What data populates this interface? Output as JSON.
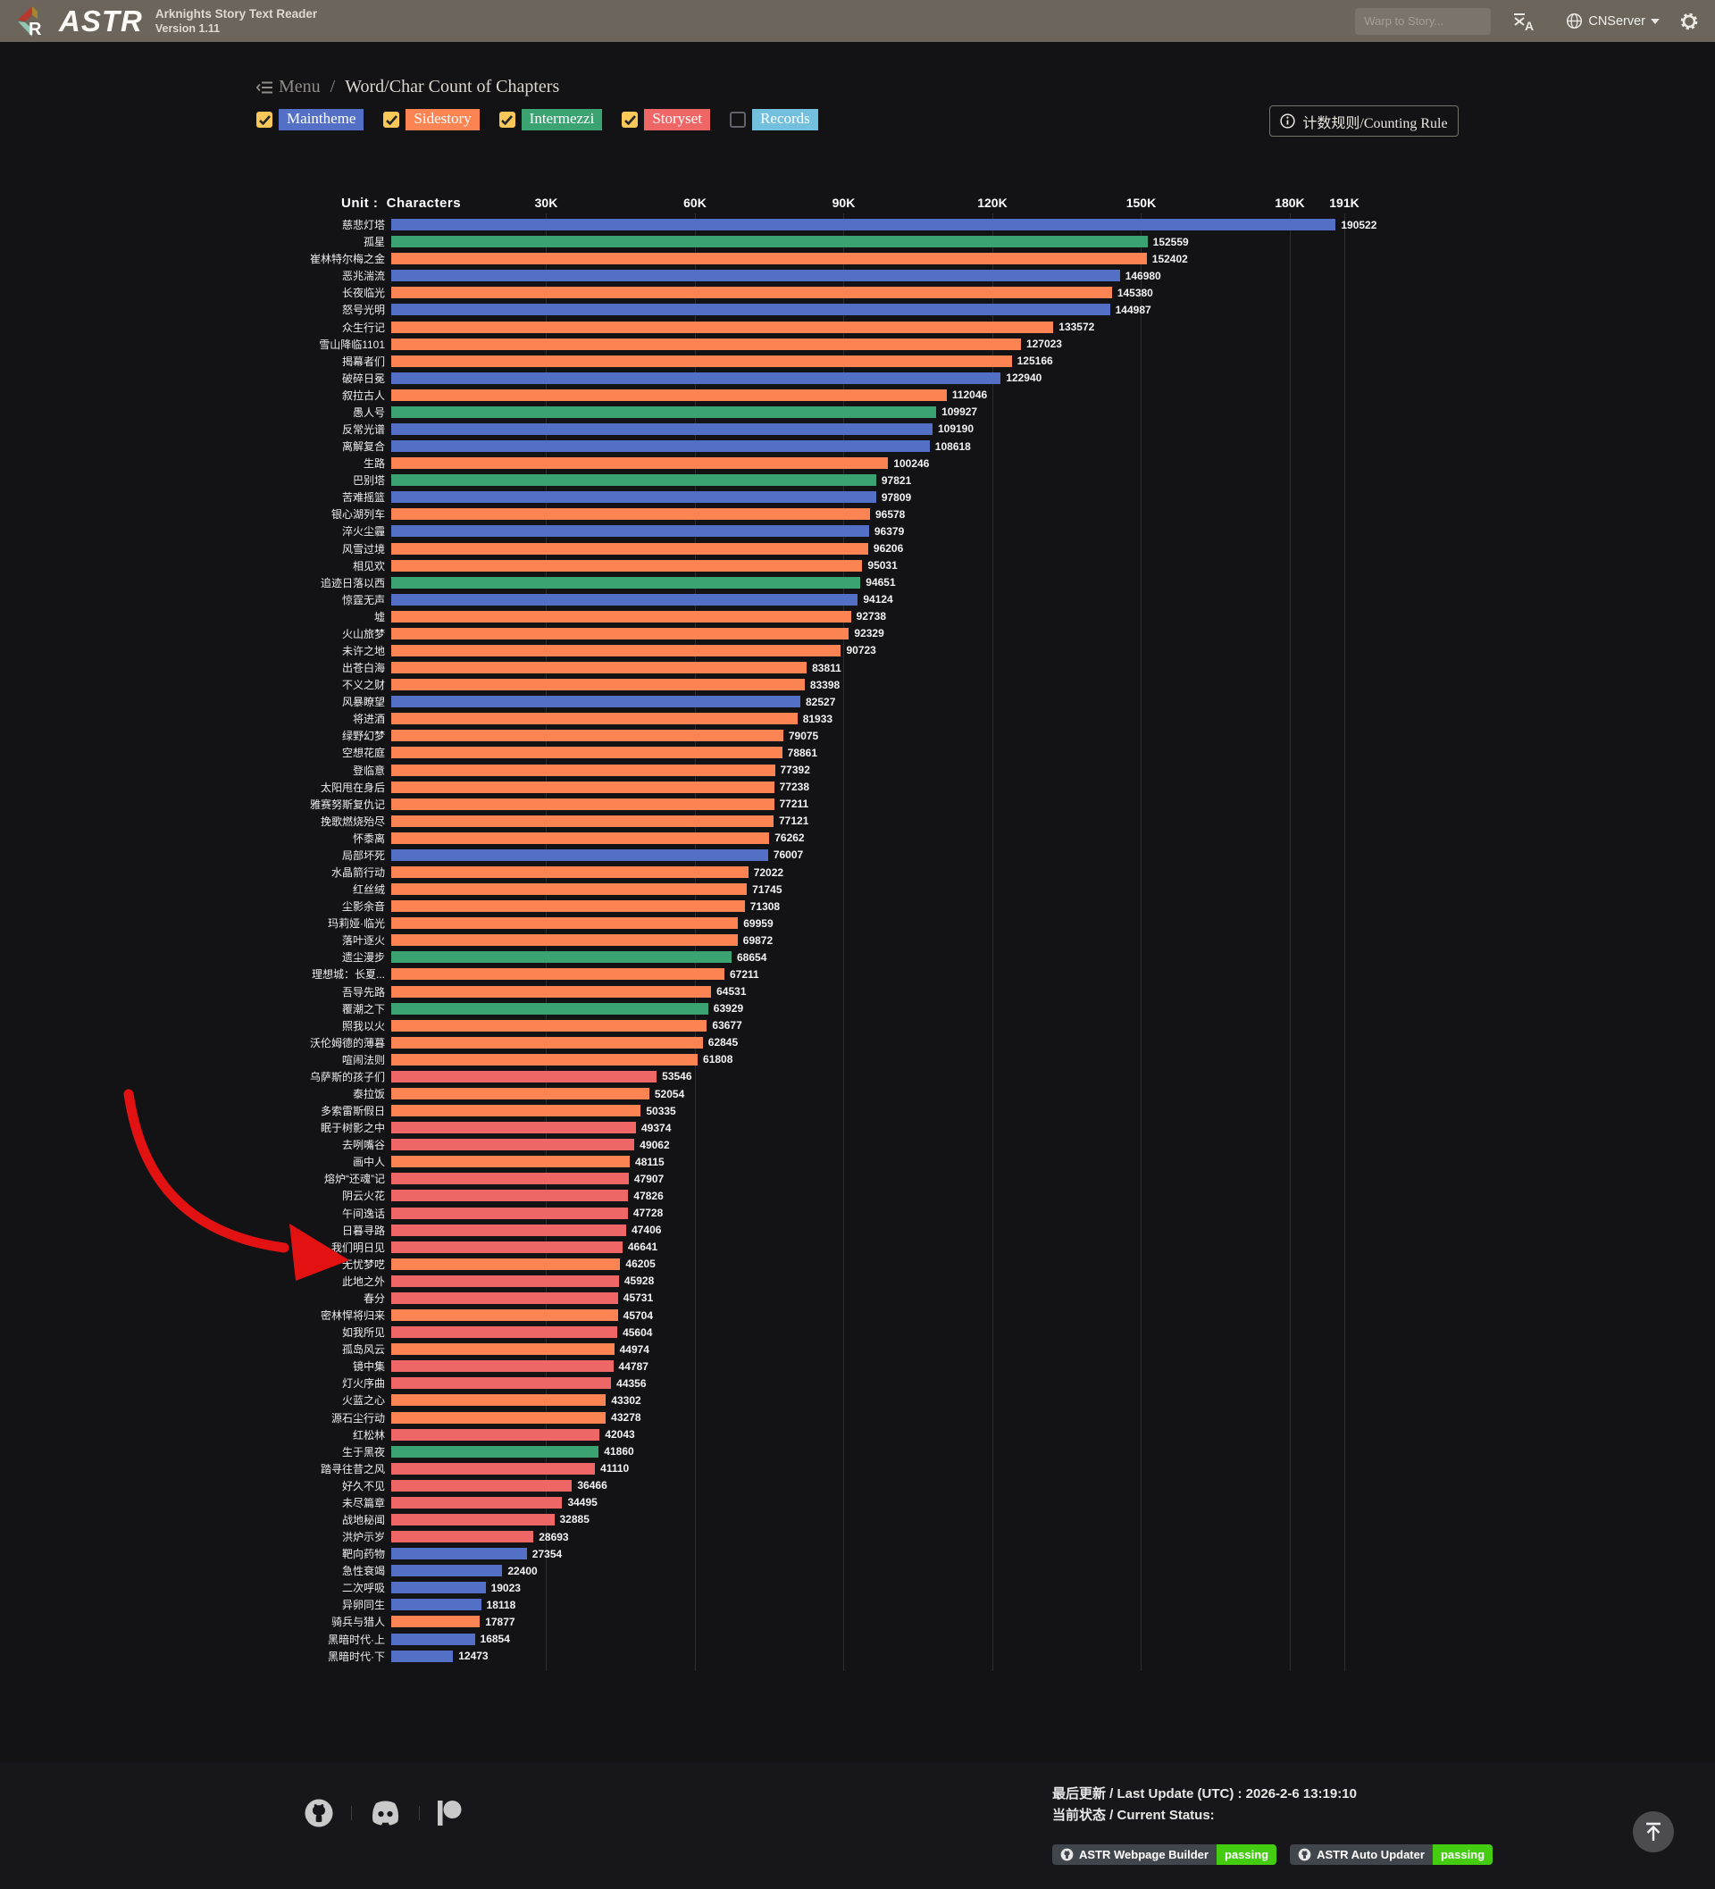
{
  "header": {
    "app_name": "ASTR",
    "app_title": "Arknights Story Text Reader",
    "version": "Version 1.11",
    "search_placeholder": "Warp to Story...",
    "server_label": "CNServer"
  },
  "breadcrumb": {
    "menu": "Menu",
    "separator": "/",
    "page": "Word/Char Count of Chapters"
  },
  "filters": [
    {
      "label": "Maintheme",
      "checked": true,
      "color": "#5470c6"
    },
    {
      "label": "Sidestory",
      "checked": true,
      "color": "#fc8452"
    },
    {
      "label": "Intermezzi",
      "checked": true,
      "color": "#3ba272"
    },
    {
      "label": "Storyset",
      "checked": true,
      "color": "#ee6666"
    },
    {
      "label": "Records",
      "checked": false,
      "color": "#73c0de"
    }
  ],
  "counting_rule_button": "计数规则/Counting Rule",
  "chart_data": {
    "type": "bar",
    "orientation": "horizontal",
    "unit_label": "Unit :  Characters",
    "xlim": [
      0,
      191000
    ],
    "x_ticks": [
      "30K",
      "60K",
      "90K",
      "120K",
      "150K",
      "180K",
      "191K"
    ],
    "x_tick_values": [
      30000,
      60000,
      90000,
      120000,
      150000,
      180000,
      191000
    ],
    "grid": true,
    "series_colors": {
      "Maintheme": "#5470c6",
      "Sidestory": "#fc8452",
      "Intermezzi": "#3ba272",
      "Storyset": "#ee6666",
      "Records": "#73c0de"
    },
    "categories": [
      "慈悲灯塔",
      "孤星",
      "崔林特尔梅之金",
      "恶兆湍流",
      "长夜临光",
      "怒号光明",
      "众生行记",
      "雪山降临1101",
      "揭幕者们",
      "破碎日冕",
      "叙拉古人",
      "愚人号",
      "反常光谱",
      "离解复合",
      "生路",
      "巴别塔",
      "苦难摇篮",
      "银心湖列车",
      "淬火尘霾",
      "风雪过境",
      "相见欢",
      "追迹日落以西",
      "惊霆无声",
      "墟",
      "火山旅梦",
      "未许之地",
      "出苍白海",
      "不义之财",
      "风暴瞭望",
      "将进酒",
      "绿野幻梦",
      "空想花庭",
      "登临意",
      "太阳甩在身后",
      "雅赛努斯复仇记",
      "挽歌燃烧殆尽",
      "怀黍离",
      "局部坏死",
      "水晶箭行动",
      "红丝绒",
      "尘影余音",
      "玛莉娅·临光",
      "落叶逐火",
      "遗尘漫步",
      "理想城：长夏...",
      "吾导先路",
      "覆潮之下",
      "照我以火",
      "沃伦姆德的薄暮",
      "喧闹法则",
      "乌萨斯的孩子们",
      "泰拉饭",
      "多索雷斯假日",
      "眠于树影之中",
      "去咧嘴谷",
      "画中人",
      "熔炉“还魂”记",
      "阴云火花",
      "午间逸话",
      "日暮寻路",
      "我们明日见",
      "无忧梦呓",
      "此地之外",
      "春分",
      "密林悍将归来",
      "如我所见",
      "孤岛风云",
      "镜中集",
      "灯火序曲",
      "火蓝之心",
      "源石尘行动",
      "红松林",
      "生于黑夜",
      "踏寻往昔之风",
      "好久不见",
      "未尽篇章",
      "战地秘闻",
      "洪炉示岁",
      "靶向药物",
      "急性衰竭",
      "二次呼吸",
      "异卵同生",
      "骑兵与猎人",
      "黑暗时代·上",
      "黑暗时代·下"
    ],
    "values": [
      190522,
      152559,
      152402,
      146980,
      145380,
      144987,
      133572,
      127023,
      125166,
      122940,
      112046,
      109927,
      109190,
      108618,
      100246,
      97821,
      97809,
      96578,
      96379,
      96206,
      95031,
      94651,
      94124,
      92738,
      92329,
      90723,
      83811,
      83398,
      82527,
      81933,
      79075,
      78861,
      77392,
      77238,
      77211,
      77121,
      76262,
      76007,
      72022,
      71745,
      71308,
      69959,
      69872,
      68654,
      67211,
      64531,
      63929,
      63677,
      62845,
      61808,
      53546,
      52054,
      50335,
      49374,
      49062,
      48115,
      47907,
      47826,
      47728,
      47406,
      46641,
      46205,
      45928,
      45731,
      45704,
      45604,
      44974,
      44787,
      44356,
      43302,
      43278,
      42043,
      41860,
      41110,
      36466,
      34495,
      32885,
      28693,
      27354,
      22400,
      19023,
      18118,
      17877,
      16854,
      12473
    ],
    "groups": [
      "Maintheme",
      "Intermezzi",
      "Sidestory",
      "Maintheme",
      "Sidestory",
      "Maintheme",
      "Sidestory",
      "Sidestory",
      "Sidestory",
      "Maintheme",
      "Sidestory",
      "Intermezzi",
      "Maintheme",
      "Maintheme",
      "Sidestory",
      "Intermezzi",
      "Maintheme",
      "Sidestory",
      "Maintheme",
      "Sidestory",
      "Sidestory",
      "Intermezzi",
      "Maintheme",
      "Sidestory",
      "Sidestory",
      "Sidestory",
      "Sidestory",
      "Sidestory",
      "Maintheme",
      "Sidestory",
      "Sidestory",
      "Sidestory",
      "Sidestory",
      "Sidestory",
      "Sidestory",
      "Sidestory",
      "Sidestory",
      "Maintheme",
      "Sidestory",
      "Sidestory",
      "Sidestory",
      "Sidestory",
      "Sidestory",
      "Intermezzi",
      "Sidestory",
      "Sidestory",
      "Intermezzi",
      "Sidestory",
      "Sidestory",
      "Sidestory",
      "Storyset",
      "Sidestory",
      "Sidestory",
      "Storyset",
      "Storyset",
      "Sidestory",
      "Storyset",
      "Storyset",
      "Storyset",
      "Storyset",
      "Storyset",
      "Sidestory",
      "Storyset",
      "Storyset",
      "Sidestory",
      "Storyset",
      "Sidestory",
      "Storyset",
      "Storyset",
      "Sidestory",
      "Sidestory",
      "Storyset",
      "Intermezzi",
      "Storyset",
      "Storyset",
      "Storyset",
      "Storyset",
      "Storyset",
      "Maintheme",
      "Maintheme",
      "Maintheme",
      "Maintheme",
      "Sidestory",
      "Maintheme",
      "Maintheme"
    ],
    "annotation": {
      "shape": "hand-drawn-arrow",
      "color": "#e31212",
      "points_to": "无忧梦呓"
    }
  },
  "footer": {
    "last_update": "最后更新 / Last Update (UTC) : 2026-2-6 13:19:10",
    "current_status": "当前状态 / Current Status:",
    "badges": [
      {
        "name": "ASTR Webpage Builder",
        "status": "passing"
      },
      {
        "name": "ASTR Auto Updater",
        "status": "passing"
      }
    ],
    "social_icons": [
      "github-icon",
      "discord-icon",
      "patreon-icon"
    ]
  }
}
